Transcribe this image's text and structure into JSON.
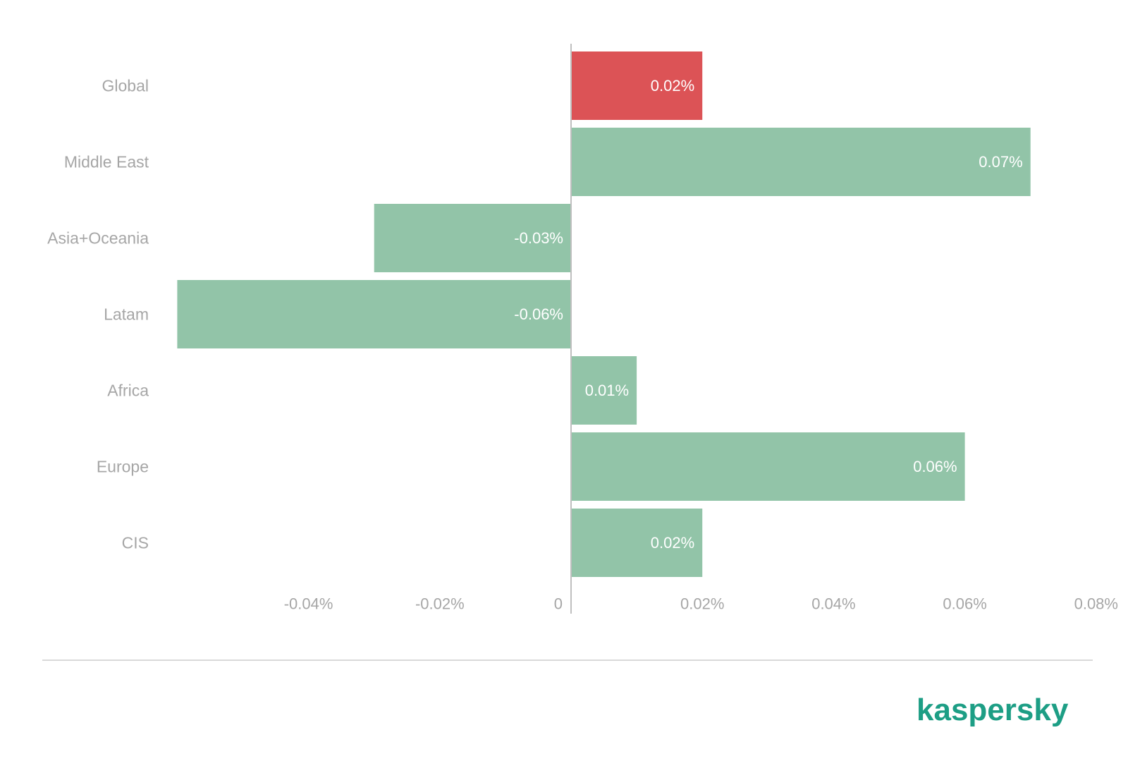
{
  "chart_data": {
    "type": "bar",
    "orientation": "horizontal",
    "categories": [
      "Global",
      "Middle East",
      "Asia+Oceania",
      "Latam",
      "Africa",
      "Europe",
      "CIS"
    ],
    "values": [
      0.02,
      0.07,
      -0.03,
      -0.06,
      0.01,
      0.06,
      0.02
    ],
    "value_labels": [
      "0.02%",
      "0.07%",
      "-0.03%",
      "-0.06%",
      "0.01%",
      "0.06%",
      "0.02%"
    ],
    "highlight_category": "Global",
    "xlim": [
      -0.06,
      0.08
    ],
    "xticks": [
      -0.04,
      -0.02,
      0,
      0.02,
      0.04,
      0.06,
      0.08
    ],
    "xtick_labels": [
      "-0.04%",
      "-0.02%",
      "0",
      "0.02%",
      "0.04%",
      "0.06%",
      "0.08%"
    ],
    "grid": false,
    "title": "",
    "xlabel": "",
    "ylabel": ""
  },
  "colors": {
    "highlight_bar": "#dc5356",
    "bar": "#92c4a8",
    "label_text": "#a6a6a6",
    "bar_label_text": "#ffffff",
    "axis": "#bfbfbf",
    "brand": "#1d9e85"
  },
  "logo": {
    "text": "kaspersky"
  }
}
